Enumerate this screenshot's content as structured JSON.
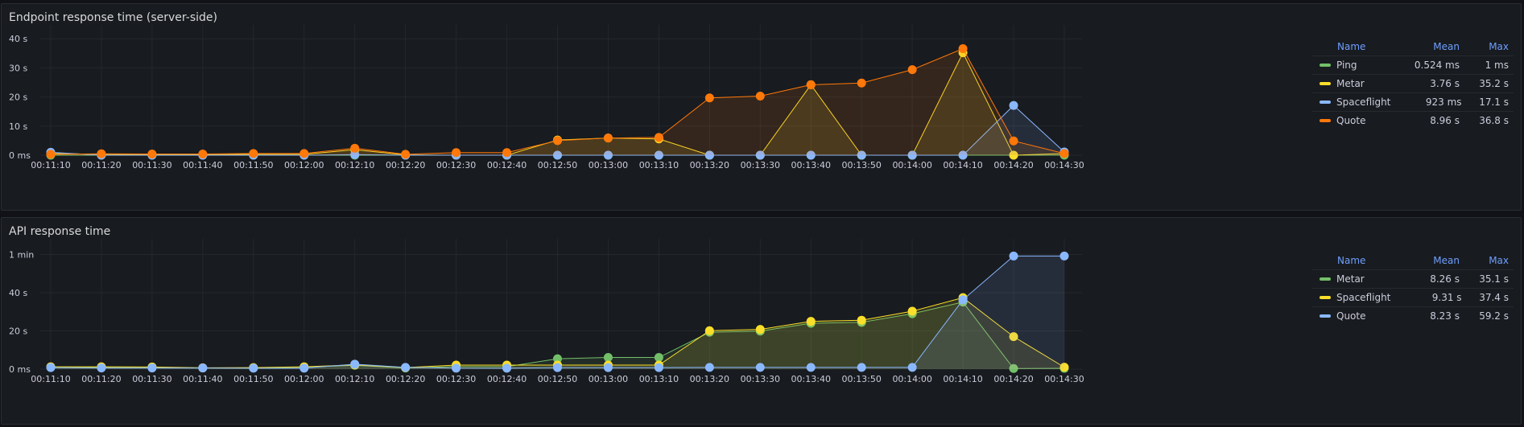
{
  "panels": [
    {
      "title": "Endpoint response time (server-side)",
      "legend": {
        "headers": {
          "name": "Name",
          "mean": "Mean",
          "max": "Max"
        },
        "rows": [
          {
            "name": "Ping",
            "mean": "0.524 ms",
            "max": "1 ms",
            "color": "#73bf69"
          },
          {
            "name": "Metar",
            "mean": "3.76 s",
            "max": "35.2 s",
            "color": "#fade2a"
          },
          {
            "name": "Spaceflight",
            "mean": "923 ms",
            "max": "17.1 s",
            "color": "#8ab8ff"
          },
          {
            "name": "Quote",
            "mean": "8.96 s",
            "max": "36.8 s",
            "color": "#ff780a"
          }
        ]
      }
    },
    {
      "title": "API response time",
      "legend": {
        "headers": {
          "name": "Name",
          "mean": "Mean",
          "max": "Max"
        },
        "rows": [
          {
            "name": "Metar",
            "mean": "8.26 s",
            "max": "35.1 s",
            "color": "#73bf69"
          },
          {
            "name": "Spaceflight",
            "mean": "9.31 s",
            "max": "37.4 s",
            "color": "#fade2a"
          },
          {
            "name": "Quote",
            "mean": "8.23 s",
            "max": "59.2 s",
            "color": "#8ab8ff"
          }
        ]
      }
    }
  ],
  "chart_data": [
    {
      "type": "area",
      "title": "Endpoint response time (server-side)",
      "x": [
        "00:11:10",
        "00:11:20",
        "00:11:30",
        "00:11:40",
        "00:11:50",
        "00:12:00",
        "00:12:10",
        "00:12:20",
        "00:12:30",
        "00:12:40",
        "00:12:50",
        "00:13:00",
        "00:13:10",
        "00:13:20",
        "00:13:30",
        "00:13:40",
        "00:13:50",
        "00:14:00",
        "00:14:10",
        "00:14:20",
        "00:14:30"
      ],
      "y_ticks": [
        {
          "value": 0,
          "label": "0 ms"
        },
        {
          "value": 10,
          "label": "10 s"
        },
        {
          "value": 20,
          "label": "20 s"
        },
        {
          "value": 30,
          "label": "30 s"
        },
        {
          "value": 40,
          "label": "40 s"
        }
      ],
      "ylim": [
        0,
        42
      ],
      "unit": "s",
      "grid": true,
      "legend_placement": "right",
      "series": [
        {
          "name": "Ping",
          "color": "#73bf69",
          "values": [
            0,
            0,
            0,
            0,
            0,
            0,
            0,
            0,
            0,
            0,
            0,
            0,
            0,
            0,
            0,
            0,
            0,
            0,
            0,
            0,
            0
          ]
        },
        {
          "name": "Metar",
          "color": "#fade2a",
          "values": [
            0.6,
            0.3,
            0.2,
            0.2,
            0.3,
            0.3,
            1.9,
            0.1,
            0,
            0,
            5.2,
            5.9,
            5.6,
            0,
            0,
            24.2,
            0,
            0,
            35.2,
            0,
            0.6
          ]
        },
        {
          "name": "Spaceflight",
          "color": "#8ab8ff",
          "values": [
            1.0,
            0,
            0,
            0,
            0,
            0,
            0.2,
            0,
            0,
            0,
            0,
            0,
            0,
            0,
            0,
            0,
            0,
            0,
            0,
            17.1,
            1.1
          ]
        },
        {
          "name": "Quote",
          "color": "#ff780a",
          "values": [
            0.3,
            0.5,
            0.4,
            0.4,
            0.6,
            0.6,
            2.4,
            0.3,
            0.9,
            0.9,
            5.0,
            5.9,
            6.1,
            19.7,
            20.3,
            24.2,
            24.8,
            29.4,
            36.6,
            4.9,
            0.6
          ]
        }
      ]
    },
    {
      "type": "area",
      "title": "API response time",
      "x": [
        "00:11:10",
        "00:11:20",
        "00:11:30",
        "00:11:40",
        "00:11:50",
        "00:12:00",
        "00:12:10",
        "00:12:20",
        "00:12:30",
        "00:12:40",
        "00:12:50",
        "00:13:00",
        "00:13:10",
        "00:13:20",
        "00:13:30",
        "00:13:40",
        "00:13:50",
        "00:14:00",
        "00:14:10",
        "00:14:20",
        "00:14:30"
      ],
      "y_ticks": [
        {
          "value": 0,
          "label": "0 ms"
        },
        {
          "value": 20,
          "label": "20 s"
        },
        {
          "value": 40,
          "label": "40 s"
        },
        {
          "value": 60,
          "label": "1 min"
        }
      ],
      "ylim": [
        0,
        64
      ],
      "unit": "s",
      "grid": true,
      "legend_placement": "right",
      "series": [
        {
          "name": "Metar",
          "color": "#73bf69",
          "values": [
            1.0,
            1.0,
            1.0,
            0.6,
            0.6,
            1.0,
            2.0,
            0.6,
            1.3,
            1.3,
            5.4,
            6.1,
            6.1,
            19.3,
            19.9,
            24.0,
            24.5,
            29.0,
            35.1,
            0.3,
            0.4
          ]
        },
        {
          "name": "Spaceflight",
          "color": "#fade2a",
          "values": [
            1.2,
            1.2,
            1.1,
            0.7,
            0.8,
            1.2,
            2.2,
            0.8,
            2.1,
            2.1,
            2.1,
            2.1,
            2.1,
            20.1,
            20.8,
            25.0,
            25.6,
            30.3,
            37.4,
            17.0,
            1.0
          ]
        },
        {
          "name": "Quote",
          "color": "#8ab8ff",
          "values": [
            0.8,
            0.6,
            0.6,
            0.6,
            0.5,
            0.5,
            2.6,
            0.9,
            0.5,
            0.5,
            0.8,
            0.8,
            0.8,
            0.9,
            0.9,
            0.9,
            0.9,
            0.9,
            36.3,
            59.2,
            59.2
          ]
        }
      ]
    }
  ]
}
